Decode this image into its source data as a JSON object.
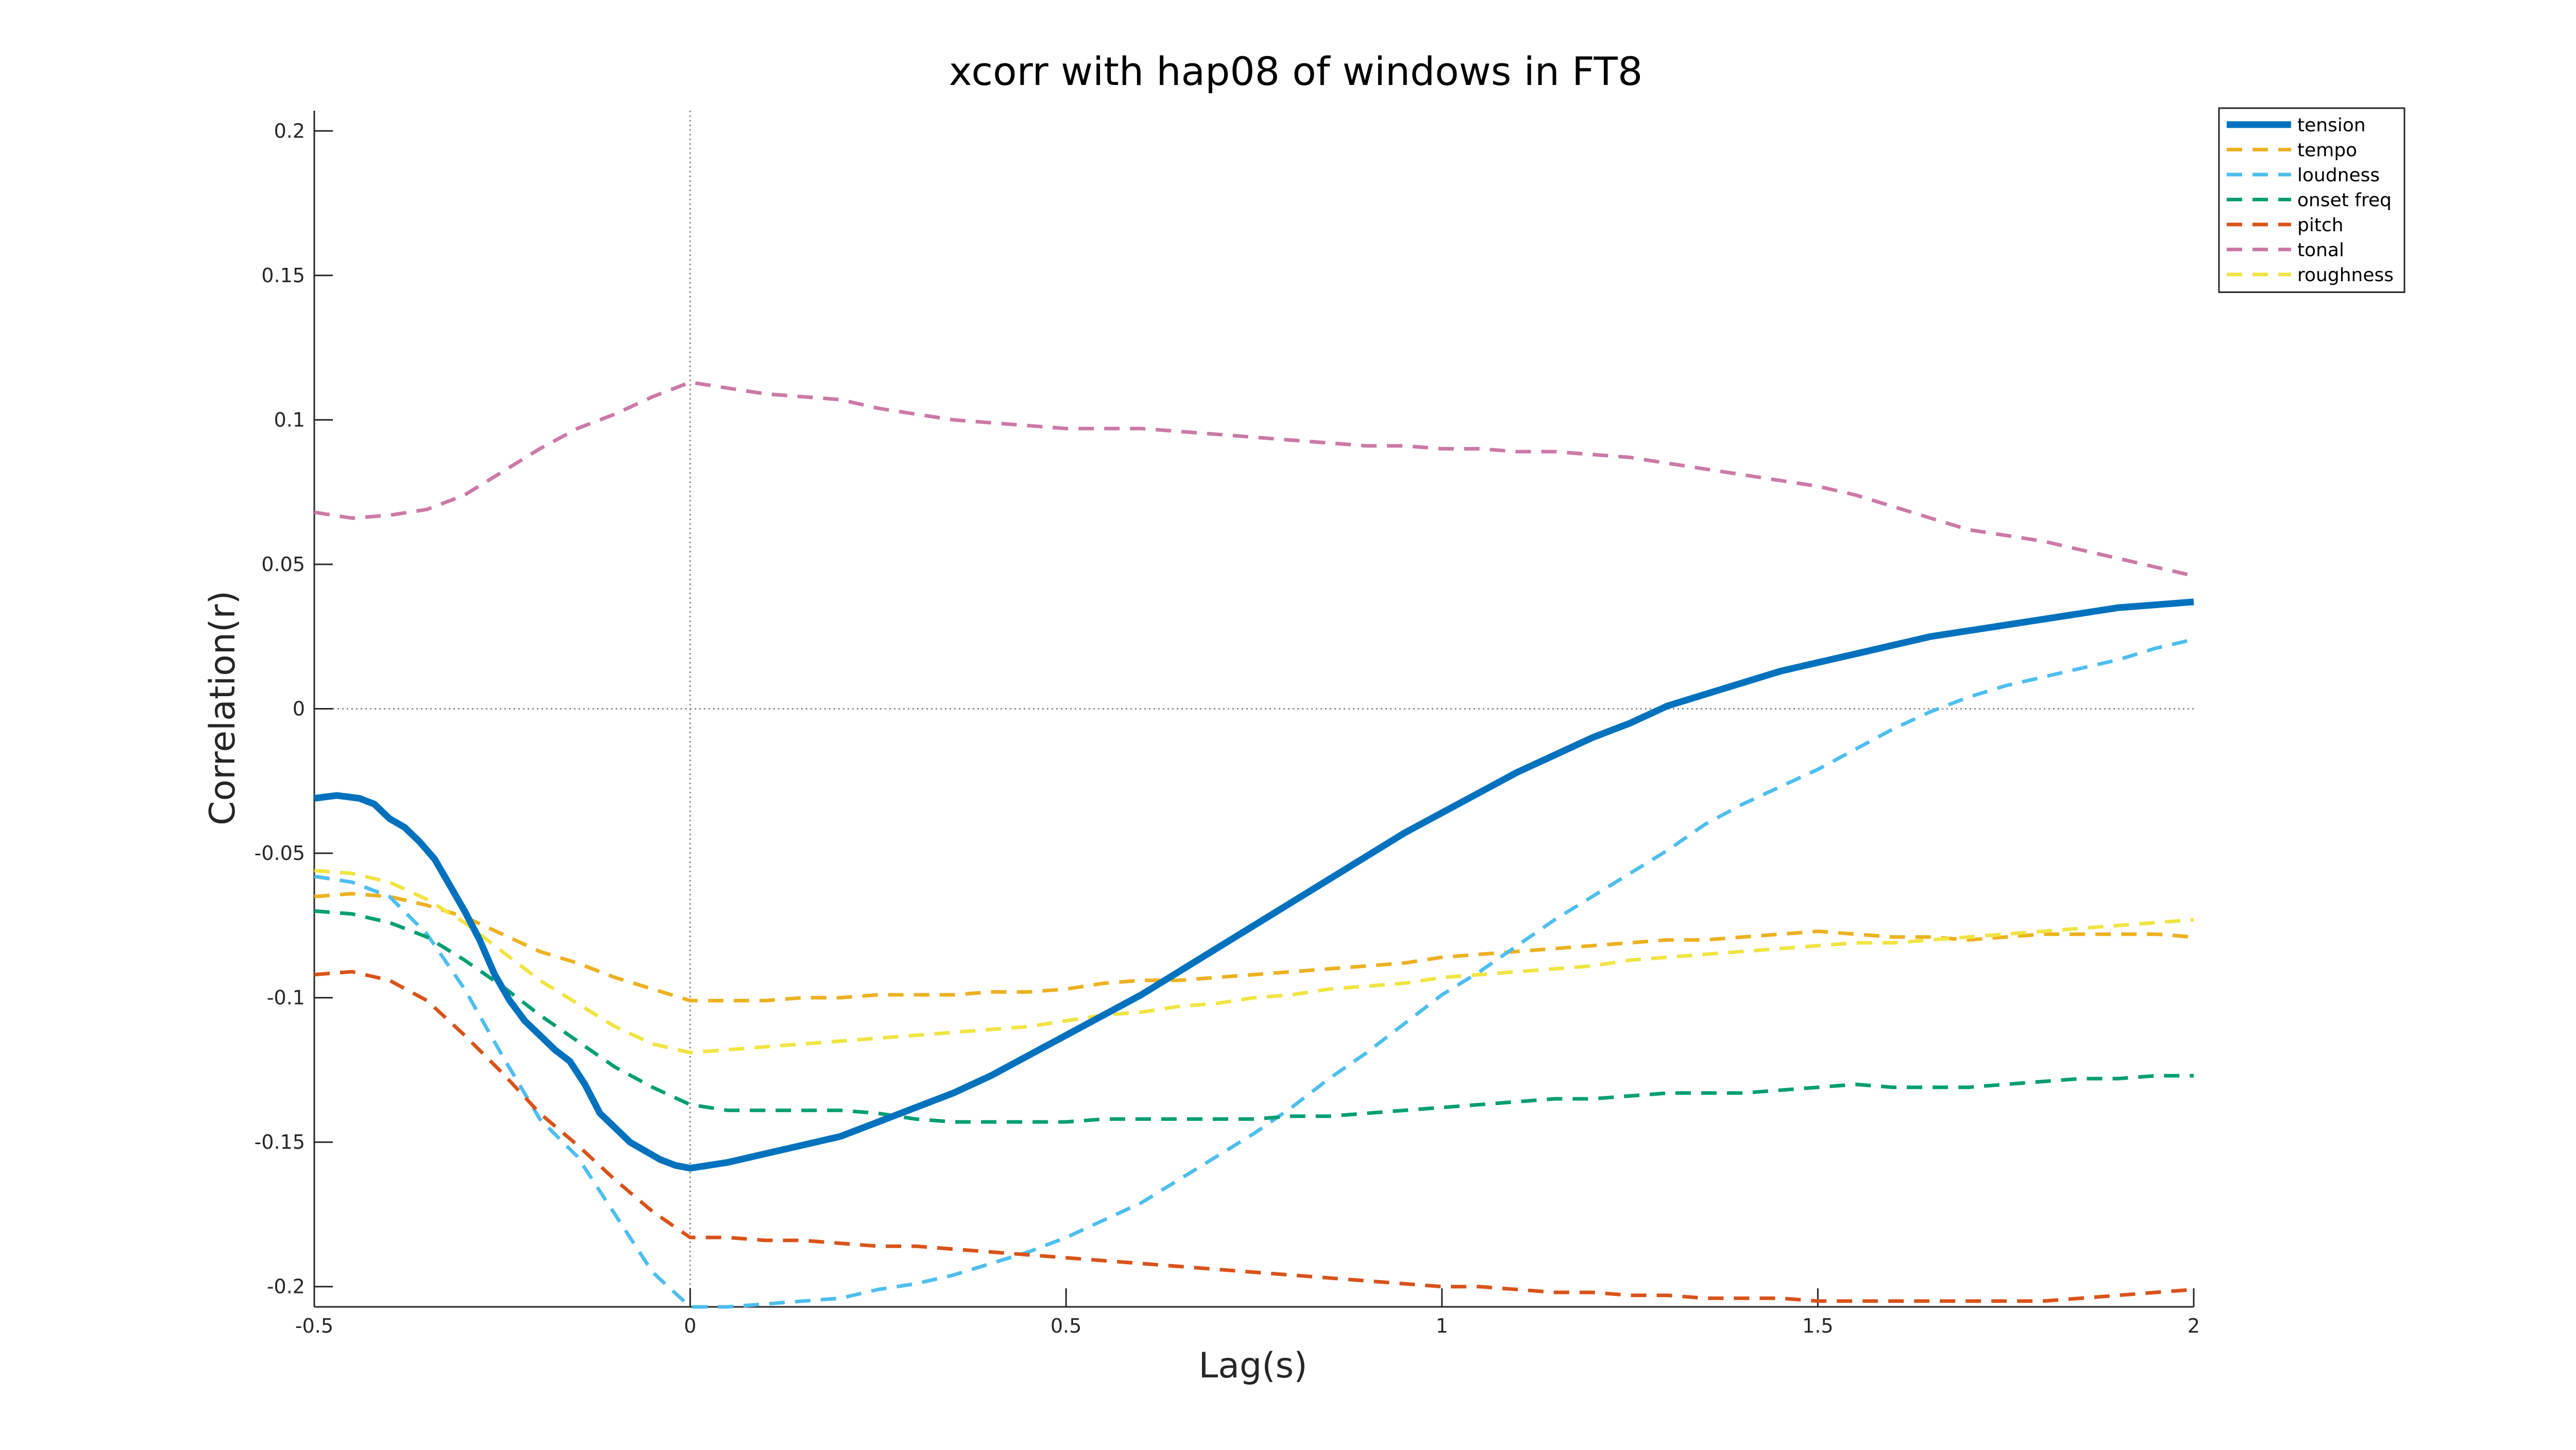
{
  "chart_data": {
    "type": "line",
    "title": "xcorr with hap08 of windows in FT8",
    "xlabel": "Lag(s)",
    "ylabel": "Correlation(r)",
    "xlim": [
      -0.5,
      2
    ],
    "ylim": [
      -0.207,
      0.207
    ],
    "xticks": [
      -0.5,
      0,
      0.5,
      1,
      1.5,
      2
    ],
    "xtick_labels": [
      "-0.5",
      "0",
      "0.5",
      "1",
      "1.5",
      "2"
    ],
    "yticks": [
      -0.2,
      -0.15,
      -0.1,
      -0.05,
      0,
      0.05,
      0.1,
      0.15,
      0.2
    ],
    "ytick_labels": [
      "-0.2",
      "-0.15",
      "-0.1",
      "-0.05",
      "0",
      "0.05",
      "0.1",
      "0.15",
      "0.2"
    ],
    "grid": false,
    "reference_lines": {
      "x": 0,
      "y": 0,
      "style": "dotted"
    },
    "legend_position": "top-right",
    "series": [
      {
        "name": "tension",
        "color": "#0072BD",
        "style": "solid",
        "weight": "bold",
        "x": [
          -0.5,
          -0.47,
          -0.44,
          -0.42,
          -0.4,
          -0.38,
          -0.36,
          -0.34,
          -0.32,
          -0.3,
          -0.28,
          -0.26,
          -0.24,
          -0.22,
          -0.2,
          -0.18,
          -0.16,
          -0.14,
          -0.12,
          -0.1,
          -0.08,
          -0.06,
          -0.04,
          -0.02,
          0,
          0.05,
          0.1,
          0.15,
          0.2,
          0.25,
          0.3,
          0.35,
          0.4,
          0.45,
          0.5,
          0.55,
          0.6,
          0.65,
          0.7,
          0.75,
          0.8,
          0.85,
          0.9,
          0.95,
          1,
          1.05,
          1.1,
          1.15,
          1.2,
          1.25,
          1.3,
          1.35,
          1.4,
          1.45,
          1.5,
          1.55,
          1.6,
          1.65,
          1.7,
          1.75,
          1.8,
          1.85,
          1.9,
          1.95,
          2
        ],
        "y": [
          -0.031,
          -0.03,
          -0.031,
          -0.033,
          -0.038,
          -0.041,
          -0.046,
          -0.052,
          -0.061,
          -0.07,
          -0.08,
          -0.092,
          -0.101,
          -0.108,
          -0.113,
          -0.118,
          -0.122,
          -0.13,
          -0.14,
          -0.145,
          -0.15,
          -0.153,
          -0.156,
          -0.158,
          -0.159,
          -0.157,
          -0.154,
          -0.151,
          -0.148,
          -0.143,
          -0.138,
          -0.133,
          -0.127,
          -0.12,
          -0.113,
          -0.106,
          -0.099,
          -0.091,
          -0.083,
          -0.075,
          -0.067,
          -0.059,
          -0.051,
          -0.043,
          -0.036,
          -0.029,
          -0.022,
          -0.016,
          -0.01,
          -0.005,
          0.001,
          0.005,
          0.009,
          0.013,
          0.016,
          0.019,
          0.022,
          0.025,
          0.027,
          0.029,
          0.031,
          0.033,
          0.035,
          0.036,
          0.037
        ]
      },
      {
        "name": "tempo",
        "color": "#EDB120",
        "style": "dashed",
        "x": [
          -0.5,
          -0.45,
          -0.4,
          -0.35,
          -0.3,
          -0.25,
          -0.2,
          -0.15,
          -0.1,
          -0.05,
          0,
          0.05,
          0.1,
          0.15,
          0.2,
          0.25,
          0.3,
          0.35,
          0.4,
          0.45,
          0.5,
          0.55,
          0.6,
          0.65,
          0.7,
          0.75,
          0.8,
          0.85,
          0.9,
          0.95,
          1,
          1.05,
          1.1,
          1.15,
          1.2,
          1.25,
          1.3,
          1.35,
          1.4,
          1.45,
          1.5,
          1.55,
          1.6,
          1.65,
          1.7,
          1.75,
          1.8,
          1.85,
          1.9,
          1.95,
          2
        ],
        "y": [
          -0.065,
          -0.064,
          -0.065,
          -0.068,
          -0.072,
          -0.078,
          -0.084,
          -0.088,
          -0.093,
          -0.097,
          -0.101,
          -0.101,
          -0.101,
          -0.1,
          -0.1,
          -0.099,
          -0.099,
          -0.099,
          -0.098,
          -0.098,
          -0.097,
          -0.095,
          -0.094,
          -0.094,
          -0.093,
          -0.092,
          -0.091,
          -0.09,
          -0.089,
          -0.088,
          -0.086,
          -0.085,
          -0.084,
          -0.083,
          -0.082,
          -0.081,
          -0.08,
          -0.08,
          -0.079,
          -0.078,
          -0.077,
          -0.078,
          -0.079,
          -0.079,
          -0.08,
          -0.079,
          -0.078,
          -0.078,
          -0.078,
          -0.078,
          -0.079
        ]
      },
      {
        "name": "loudness",
        "color": "#4DBEEE",
        "style": "dashed",
        "x": [
          -0.5,
          -0.45,
          -0.4,
          -0.35,
          -0.3,
          -0.25,
          -0.2,
          -0.15,
          -0.1,
          -0.05,
          0,
          0.05,
          0.1,
          0.15,
          0.2,
          0.25,
          0.3,
          0.35,
          0.4,
          0.45,
          0.5,
          0.55,
          0.6,
          0.65,
          0.7,
          0.75,
          0.8,
          0.85,
          0.9,
          0.95,
          1,
          1.05,
          1.1,
          1.15,
          1.2,
          1.25,
          1.3,
          1.35,
          1.4,
          1.45,
          1.5,
          1.55,
          1.6,
          1.65,
          1.7,
          1.75,
          1.8,
          1.85,
          1.9,
          1.95,
          2
        ],
        "y": [
          -0.058,
          -0.06,
          -0.065,
          -0.078,
          -0.097,
          -0.12,
          -0.142,
          -0.155,
          -0.175,
          -0.195,
          -0.207,
          -0.207,
          -0.206,
          -0.205,
          -0.204,
          -0.201,
          -0.199,
          -0.196,
          -0.192,
          -0.188,
          -0.183,
          -0.177,
          -0.171,
          -0.163,
          -0.155,
          -0.147,
          -0.138,
          -0.128,
          -0.119,
          -0.109,
          -0.099,
          -0.091,
          -0.082,
          -0.073,
          -0.065,
          -0.057,
          -0.049,
          -0.04,
          -0.033,
          -0.027,
          -0.021,
          -0.014,
          -0.007,
          -0.001,
          0.004,
          0.008,
          0.011,
          0.014,
          0.017,
          0.021,
          0.024
        ]
      },
      {
        "name": "onset freq",
        "color": "#009E73",
        "style": "dashed",
        "x": [
          -0.5,
          -0.45,
          -0.4,
          -0.35,
          -0.3,
          -0.25,
          -0.2,
          -0.15,
          -0.1,
          -0.05,
          0,
          0.05,
          0.1,
          0.15,
          0.2,
          0.25,
          0.3,
          0.35,
          0.4,
          0.45,
          0.5,
          0.55,
          0.6,
          0.65,
          0.7,
          0.75,
          0.8,
          0.85,
          0.9,
          0.95,
          1,
          1.05,
          1.1,
          1.15,
          1.2,
          1.25,
          1.3,
          1.35,
          1.4,
          1.45,
          1.5,
          1.55,
          1.6,
          1.65,
          1.7,
          1.75,
          1.8,
          1.85,
          1.9,
          1.95,
          2
        ],
        "y": [
          -0.07,
          -0.071,
          -0.074,
          -0.079,
          -0.087,
          -0.096,
          -0.106,
          -0.115,
          -0.124,
          -0.131,
          -0.137,
          -0.139,
          -0.139,
          -0.139,
          -0.139,
          -0.14,
          -0.142,
          -0.143,
          -0.143,
          -0.143,
          -0.143,
          -0.142,
          -0.142,
          -0.142,
          -0.142,
          -0.142,
          -0.141,
          -0.141,
          -0.14,
          -0.139,
          -0.138,
          -0.137,
          -0.136,
          -0.135,
          -0.135,
          -0.134,
          -0.133,
          -0.133,
          -0.133,
          -0.132,
          -0.131,
          -0.13,
          -0.131,
          -0.131,
          -0.131,
          -0.13,
          -0.129,
          -0.128,
          -0.128,
          -0.127,
          -0.127
        ]
      },
      {
        "name": "pitch",
        "color": "#D95319",
        "style": "dashed",
        "x": [
          -0.5,
          -0.45,
          -0.4,
          -0.35,
          -0.3,
          -0.25,
          -0.2,
          -0.15,
          -0.1,
          -0.05,
          0,
          0.05,
          0.1,
          0.15,
          0.2,
          0.25,
          0.3,
          0.35,
          0.4,
          0.45,
          0.5,
          0.55,
          0.6,
          0.65,
          0.7,
          0.75,
          0.8,
          0.85,
          0.9,
          0.95,
          1,
          1.05,
          1.1,
          1.15,
          1.2,
          1.25,
          1.3,
          1.35,
          1.4,
          1.45,
          1.5,
          1.55,
          1.6,
          1.65,
          1.7,
          1.75,
          1.8,
          1.85,
          1.9,
          1.95,
          2
        ],
        "y": [
          -0.092,
          -0.091,
          -0.094,
          -0.101,
          -0.113,
          -0.126,
          -0.14,
          -0.151,
          -0.163,
          -0.174,
          -0.183,
          -0.183,
          -0.184,
          -0.184,
          -0.185,
          -0.186,
          -0.186,
          -0.187,
          -0.188,
          -0.189,
          -0.19,
          -0.191,
          -0.192,
          -0.193,
          -0.194,
          -0.195,
          -0.196,
          -0.197,
          -0.198,
          -0.199,
          -0.2,
          -0.2,
          -0.201,
          -0.202,
          -0.202,
          -0.203,
          -0.203,
          -0.204,
          -0.204,
          -0.204,
          -0.205,
          -0.205,
          -0.205,
          -0.205,
          -0.205,
          -0.205,
          -0.205,
          -0.204,
          -0.203,
          -0.202,
          -0.201
        ]
      },
      {
        "name": "tonal",
        "color": "#CC79A7",
        "style": "dashed",
        "x": [
          -0.5,
          -0.45,
          -0.4,
          -0.35,
          -0.3,
          -0.25,
          -0.2,
          -0.15,
          -0.1,
          -0.05,
          0,
          0.05,
          0.1,
          0.15,
          0.2,
          0.25,
          0.3,
          0.35,
          0.4,
          0.45,
          0.5,
          0.55,
          0.6,
          0.65,
          0.7,
          0.75,
          0.8,
          0.85,
          0.9,
          0.95,
          1,
          1.05,
          1.1,
          1.15,
          1.2,
          1.25,
          1.3,
          1.35,
          1.4,
          1.45,
          1.5,
          1.55,
          1.6,
          1.65,
          1.7,
          1.75,
          1.8,
          1.85,
          1.9,
          1.95,
          2
        ],
        "y": [
          0.068,
          0.066,
          0.067,
          0.069,
          0.074,
          0.082,
          0.09,
          0.097,
          0.102,
          0.108,
          0.113,
          0.111,
          0.109,
          0.108,
          0.107,
          0.104,
          0.102,
          0.1,
          0.099,
          0.098,
          0.097,
          0.097,
          0.097,
          0.096,
          0.095,
          0.094,
          0.093,
          0.092,
          0.091,
          0.091,
          0.09,
          0.09,
          0.089,
          0.089,
          0.088,
          0.087,
          0.085,
          0.083,
          0.081,
          0.079,
          0.077,
          0.074,
          0.07,
          0.066,
          0.062,
          0.06,
          0.058,
          0.055,
          0.052,
          0.049,
          0.046
        ]
      },
      {
        "name": "roughness",
        "color": "#F0E442",
        "style": "dashed",
        "x": [
          -0.5,
          -0.45,
          -0.4,
          -0.35,
          -0.3,
          -0.25,
          -0.2,
          -0.15,
          -0.1,
          -0.05,
          0,
          0.05,
          0.1,
          0.15,
          0.2,
          0.25,
          0.3,
          0.35,
          0.4,
          0.45,
          0.5,
          0.55,
          0.6,
          0.65,
          0.7,
          0.75,
          0.8,
          0.85,
          0.9,
          0.95,
          1,
          1.05,
          1.1,
          1.15,
          1.2,
          1.25,
          1.3,
          1.35,
          1.4,
          1.45,
          1.5,
          1.55,
          1.6,
          1.65,
          1.7,
          1.75,
          1.8,
          1.85,
          1.9,
          1.95,
          2
        ],
        "y": [
          -0.056,
          -0.057,
          -0.06,
          -0.066,
          -0.074,
          -0.084,
          -0.094,
          -0.102,
          -0.11,
          -0.116,
          -0.119,
          -0.118,
          -0.117,
          -0.116,
          -0.115,
          -0.114,
          -0.113,
          -0.112,
          -0.111,
          -0.11,
          -0.108,
          -0.106,
          -0.105,
          -0.103,
          -0.102,
          -0.1,
          -0.099,
          -0.097,
          -0.096,
          -0.095,
          -0.093,
          -0.092,
          -0.091,
          -0.09,
          -0.089,
          -0.087,
          -0.086,
          -0.085,
          -0.084,
          -0.083,
          -0.082,
          -0.081,
          -0.081,
          -0.08,
          -0.079,
          -0.078,
          -0.077,
          -0.076,
          -0.075,
          -0.074,
          -0.073
        ]
      }
    ]
  }
}
